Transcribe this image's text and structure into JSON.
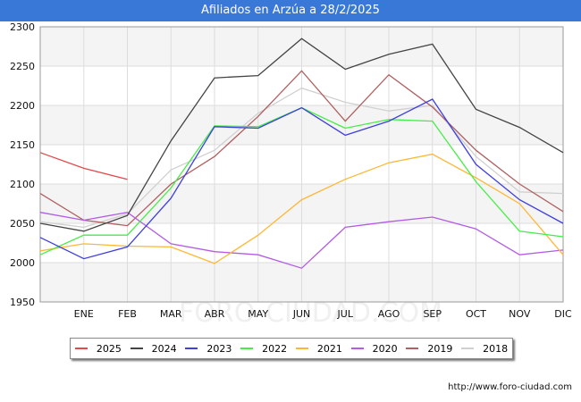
{
  "title": "Afiliados en Arzúa a 28/2/2025",
  "source": "http://www.foro-ciudad.com",
  "watermark": "FORO-CIUDAD.COM",
  "chart_data": {
    "type": "line",
    "categories": [
      "",
      "ENE",
      "FEB",
      "MAR",
      "ABR",
      "MAY",
      "JUN",
      "JUL",
      "AGO",
      "SEP",
      "OCT",
      "NOV",
      "DIC"
    ],
    "ylim": [
      1950,
      2300
    ],
    "yticks": [
      1950,
      2000,
      2050,
      2100,
      2150,
      2200,
      2250,
      2300
    ],
    "grid": true,
    "legend_position": "bottom",
    "series": [
      {
        "name": "2025",
        "color": "#e04a4a",
        "values": [
          2140,
          2120,
          2106,
          null,
          null,
          null,
          null,
          null,
          null,
          null,
          null,
          null,
          null
        ]
      },
      {
        "name": "2024",
        "color": "#444444",
        "values": [
          2050,
          2040,
          2060,
          2155,
          2235,
          2238,
          2285,
          2246,
          2265,
          2278,
          2195,
          2172,
          2140
        ]
      },
      {
        "name": "2023",
        "color": "#3f3fe0",
        "values": [
          2032,
          2005,
          2020,
          2082,
          2173,
          2171,
          2197,
          2162,
          2180,
          2208,
          2125,
          2080,
          2050
        ]
      },
      {
        "name": "2022",
        "color": "#44ee44",
        "values": [
          2010,
          2035,
          2035,
          2095,
          2174,
          2173,
          2197,
          2171,
          2182,
          2180,
          2103,
          2040,
          2033
        ]
      },
      {
        "name": "2021",
        "color": "#ffb733",
        "values": [
          2015,
          2024,
          2021,
          2020,
          1999,
          2035,
          2080,
          2106,
          2127,
          2138,
          2108,
          2075,
          2010
        ]
      },
      {
        "name": "2020",
        "color": "#b25be5",
        "values": [
          2064,
          2054,
          2064,
          2024,
          2014,
          2010,
          1993,
          2045,
          2052,
          2058,
          2043,
          2010,
          2016
        ]
      },
      {
        "name": "2019",
        "color": "#b06060",
        "values": [
          2088,
          2054,
          2047,
          2100,
          2135,
          2186,
          2244,
          2180,
          2239,
          2198,
          2143,
          2100,
          2065
        ]
      },
      {
        "name": "2018",
        "color": "#d0d0d0",
        "values": [
          2052,
          2045,
          2062,
          2118,
          2143,
          2190,
          2222,
          2204,
          2193,
          2200,
          2135,
          2090,
          2088
        ]
      }
    ]
  }
}
